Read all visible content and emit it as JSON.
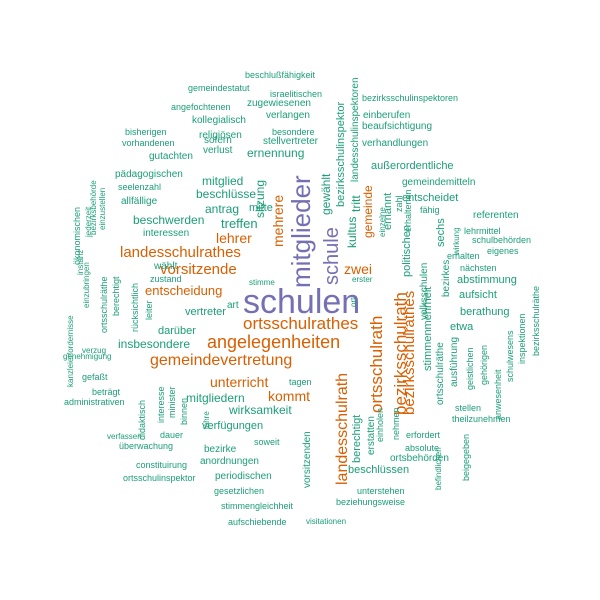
{
  "palette": {
    "purple": "#7570b3",
    "orange": "#d95f02",
    "green": "#1b9e77"
  },
  "words": [
    {
      "text": "schulen",
      "color": "purple"
    },
    {
      "text": "mitglieder",
      "color": "purple"
    },
    {
      "text": "schule",
      "color": "purple"
    },
    {
      "text": "ortsschulrathes",
      "color": "orange"
    },
    {
      "text": "angelegenheiten",
      "color": "orange"
    },
    {
      "text": "gemeindevertretung",
      "color": "orange"
    },
    {
      "text": "ortsschulrath",
      "color": "orange"
    },
    {
      "text": "bezirksschulrath",
      "color": "orange"
    },
    {
      "text": "landesschulrath",
      "color": "orange"
    },
    {
      "text": "landesschulrathes",
      "color": "orange"
    },
    {
      "text": "vorsitzende",
      "color": "orange"
    },
    {
      "text": "lehrer",
      "color": "orange"
    },
    {
      "text": "mehrere",
      "color": "orange"
    },
    {
      "text": "unterricht",
      "color": "orange"
    },
    {
      "text": "kommt",
      "color": "orange"
    },
    {
      "text": "zwei",
      "color": "orange"
    },
    {
      "text": "entscheidung",
      "color": "orange"
    },
    {
      "text": "bezirksschulrathes",
      "color": "orange"
    },
    {
      "text": "kultus",
      "color": "green"
    },
    {
      "text": "tritt",
      "color": "green"
    },
    {
      "text": "gemeinde",
      "color": "orange"
    },
    {
      "text": "sitzung",
      "color": "green"
    },
    {
      "text": "gewählt",
      "color": "green"
    },
    {
      "text": "treffen",
      "color": "green"
    },
    {
      "text": "beschwerden",
      "color": "green"
    },
    {
      "text": "antrag",
      "color": "green"
    },
    {
      "text": "mitte",
      "color": "green"
    },
    {
      "text": "beschlüsse",
      "color": "green"
    },
    {
      "text": "mitglied",
      "color": "green"
    },
    {
      "text": "ernennung",
      "color": "green"
    },
    {
      "text": "interessen",
      "color": "green"
    },
    {
      "text": "allfällige",
      "color": "green"
    },
    {
      "text": "seelenzahl",
      "color": "green"
    },
    {
      "text": "pädagogischen",
      "color": "green"
    },
    {
      "text": "gutachten",
      "color": "green"
    },
    {
      "text": "vorhandenen",
      "color": "green"
    },
    {
      "text": "bisherigen",
      "color": "green"
    },
    {
      "text": "verlust",
      "color": "green"
    },
    {
      "text": "sofern",
      "color": "green"
    },
    {
      "text": "religiösen",
      "color": "green"
    },
    {
      "text": "kollegialisch",
      "color": "green"
    },
    {
      "text": "angefochtenen",
      "color": "green"
    },
    {
      "text": "gemeindestatut",
      "color": "green"
    },
    {
      "text": "beschlußfähigkeit",
      "color": "green"
    },
    {
      "text": "israelitischen",
      "color": "green"
    },
    {
      "text": "zugewiesenen",
      "color": "green"
    },
    {
      "text": "verlangen",
      "color": "green"
    },
    {
      "text": "besondere",
      "color": "green"
    },
    {
      "text": "stellvertreter",
      "color": "green"
    },
    {
      "text": "bezirksschulinspektor",
      "color": "green"
    },
    {
      "text": "landesschulinspektoren",
      "color": "green"
    },
    {
      "text": "bezirksschulinspektoren",
      "color": "green"
    },
    {
      "text": "einberufen",
      "color": "green"
    },
    {
      "text": "beaufsichtigung",
      "color": "green"
    },
    {
      "text": "verhandlungen",
      "color": "green"
    },
    {
      "text": "außerordentliche",
      "color": "green"
    },
    {
      "text": "gemeindemitteln",
      "color": "green"
    },
    {
      "text": "entscheidet",
      "color": "green"
    },
    {
      "text": "ernannt",
      "color": "green"
    },
    {
      "text": "erhaltenen",
      "color": "green"
    },
    {
      "text": "zahl",
      "color": "green"
    },
    {
      "text": "fähig",
      "color": "green"
    },
    {
      "text": "referenten",
      "color": "green"
    },
    {
      "text": "lehrmittel",
      "color": "green"
    },
    {
      "text": "schulbehörden",
      "color": "green"
    },
    {
      "text": "eigenes",
      "color": "green"
    },
    {
      "text": "nächsten",
      "color": "green"
    },
    {
      "text": "abstimmung",
      "color": "green"
    },
    {
      "text": "aufsicht",
      "color": "green"
    },
    {
      "text": "erhalten",
      "color": "green"
    },
    {
      "text": "politischen",
      "color": "green"
    },
    {
      "text": "sechs",
      "color": "green"
    },
    {
      "text": "wirkung",
      "color": "green"
    },
    {
      "text": "volksschulen",
      "color": "green"
    },
    {
      "text": "stimmenmehrheit",
      "color": "green"
    },
    {
      "text": "bezirkes",
      "color": "green"
    },
    {
      "text": "berathung",
      "color": "green"
    },
    {
      "text": "etwa",
      "color": "green"
    },
    {
      "text": "ausführung",
      "color": "green"
    },
    {
      "text": "ortsschulräthe",
      "color": "green"
    },
    {
      "text": "bezirksschulräthe",
      "color": "green"
    },
    {
      "text": "schulwesens",
      "color": "green"
    },
    {
      "text": "inspektionen",
      "color": "green"
    },
    {
      "text": "geistlichen",
      "color": "green"
    },
    {
      "text": "gehörigen",
      "color": "green"
    },
    {
      "text": "anwesenheit",
      "color": "green"
    },
    {
      "text": "theilzunehmen",
      "color": "green"
    },
    {
      "text": "stellen",
      "color": "green"
    },
    {
      "text": "beigegeben",
      "color": "green"
    },
    {
      "text": "erfordert",
      "color": "green"
    },
    {
      "text": "absolute",
      "color": "green"
    },
    {
      "text": "ortsbehörden",
      "color": "green"
    },
    {
      "text": "beschlüssen",
      "color": "green"
    },
    {
      "text": "befindlichen",
      "color": "green"
    },
    {
      "text": "nehmen",
      "color": "green"
    },
    {
      "text": "einholen",
      "color": "green"
    },
    {
      "text": "erstatten",
      "color": "green"
    },
    {
      "text": "berechtigt",
      "color": "green"
    },
    {
      "text": "vorsitzenden",
      "color": "green"
    },
    {
      "text": "unterstehen",
      "color": "green"
    },
    {
      "text": "beziehungsweise",
      "color": "green"
    },
    {
      "text": "visitationen",
      "color": "green"
    },
    {
      "text": "aufschiebende",
      "color": "green"
    },
    {
      "text": "stimmengleichheit",
      "color": "green"
    },
    {
      "text": "gesetzlichen",
      "color": "green"
    },
    {
      "text": "periodischen",
      "color": "green"
    },
    {
      "text": "anordnungen",
      "color": "green"
    },
    {
      "text": "bezirke",
      "color": "green"
    },
    {
      "text": "soweit",
      "color": "green"
    },
    {
      "text": "verfügungen",
      "color": "green"
    },
    {
      "text": "wirksamkeit",
      "color": "green"
    },
    {
      "text": "mitgliedern",
      "color": "green"
    },
    {
      "text": "tagen",
      "color": "green"
    },
    {
      "text": "dauer",
      "color": "green"
    },
    {
      "text": "jahre",
      "color": "green"
    },
    {
      "text": "überwachung",
      "color": "green"
    },
    {
      "text": "constituirung",
      "color": "green"
    },
    {
      "text": "ortsschulinspektor",
      "color": "green"
    },
    {
      "text": "verfassen",
      "color": "green"
    },
    {
      "text": "administrativen",
      "color": "green"
    },
    {
      "text": "beträgt",
      "color": "green"
    },
    {
      "text": "gefaßt",
      "color": "green"
    },
    {
      "text": "genehmigung",
      "color": "green"
    },
    {
      "text": "verzug",
      "color": "green"
    },
    {
      "text": "kanzleierfordernisse",
      "color": "green"
    },
    {
      "text": "didaktisch",
      "color": "green"
    },
    {
      "text": "interesse",
      "color": "green"
    },
    {
      "text": "minister",
      "color": "green"
    },
    {
      "text": "binnen",
      "color": "green"
    },
    {
      "text": "insbesondere",
      "color": "green"
    },
    {
      "text": "darüber",
      "color": "green"
    },
    {
      "text": "vertreter",
      "color": "green"
    },
    {
      "text": "art",
      "color": "green"
    },
    {
      "text": "leiter",
      "color": "green"
    },
    {
      "text": "rücksichtlich",
      "color": "green"
    },
    {
      "text": "wählt",
      "color": "green"
    },
    {
      "text": "zustand",
      "color": "green"
    },
    {
      "text": "stimme",
      "color": "green"
    },
    {
      "text": "ortsschulräthe",
      "color": "green"
    },
    {
      "text": "berechtigt",
      "color": "green"
    },
    {
      "text": "einzubringen",
      "color": "green"
    },
    {
      "text": "ökonomischen",
      "color": "green"
    },
    {
      "text": "instanz",
      "color": "green"
    },
    {
      "text": "bezirksbehörde",
      "color": "green"
    },
    {
      "text": "einzustellen",
      "color": "green"
    },
    {
      "text": "jederzeit",
      "color": "green"
    },
    {
      "text": "erster",
      "color": "green"
    },
    {
      "text": "einzelne",
      "color": "green"
    },
    {
      "text": "ort",
      "color": "green"
    }
  ]
}
